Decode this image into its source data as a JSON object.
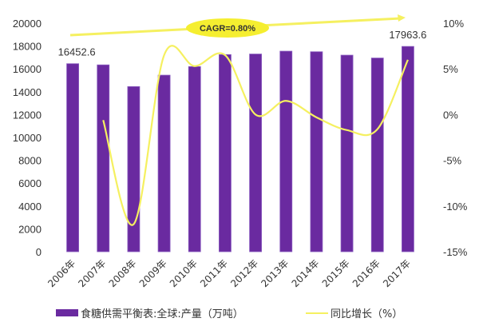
{
  "chart_data": {
    "type": "bar+line",
    "title": "",
    "annotation": "CAGR=0.80%",
    "categories": [
      "2006年",
      "2007年",
      "2008年",
      "2009年",
      "2010年",
      "2011年",
      "2012年",
      "2013年",
      "2014年",
      "2015年",
      "2016年",
      "2017年"
    ],
    "series": [
      {
        "name": "食糖供需平衡表:全球:产量（万吨）",
        "type": "bar",
        "axis": "left",
        "color": "#6a2aa0",
        "values": [
          16452.6,
          16350,
          14450,
          15450,
          16200,
          17250,
          17300,
          17550,
          17500,
          17200,
          16950,
          17963.6
        ]
      },
      {
        "name": "同比增长（%）",
        "type": "line",
        "axis": "right",
        "color": "#f5f060",
        "values": [
          null,
          -0.6,
          -12.0,
          6.5,
          5.3,
          6.5,
          0.0,
          1.5,
          -0.3,
          -1.7,
          -1.6,
          6.0
        ]
      }
    ],
    "data_labels": [
      {
        "category": "2006年",
        "text": "16452.6"
      },
      {
        "category": "2017年",
        "text": "17963.6"
      }
    ],
    "left_axis": {
      "ylim": [
        0,
        20000
      ],
      "ticks": [
        "0",
        "2000",
        "4000",
        "6000",
        "8000",
        "10000",
        "12000",
        "14000",
        "16000",
        "18000",
        "20000"
      ]
    },
    "right_axis": {
      "ylim": [
        -15,
        10
      ],
      "ticks": [
        "-15%",
        "-10%",
        "-5%",
        "0%",
        "5%",
        "10%"
      ]
    },
    "xlabel": "",
    "ylabel": "",
    "grid": false,
    "legend_position": "bottom"
  },
  "legend": {
    "bar_label": "食糖供需平衡表:全球:产量（万吨）",
    "line_label": "同比增长（%）"
  }
}
